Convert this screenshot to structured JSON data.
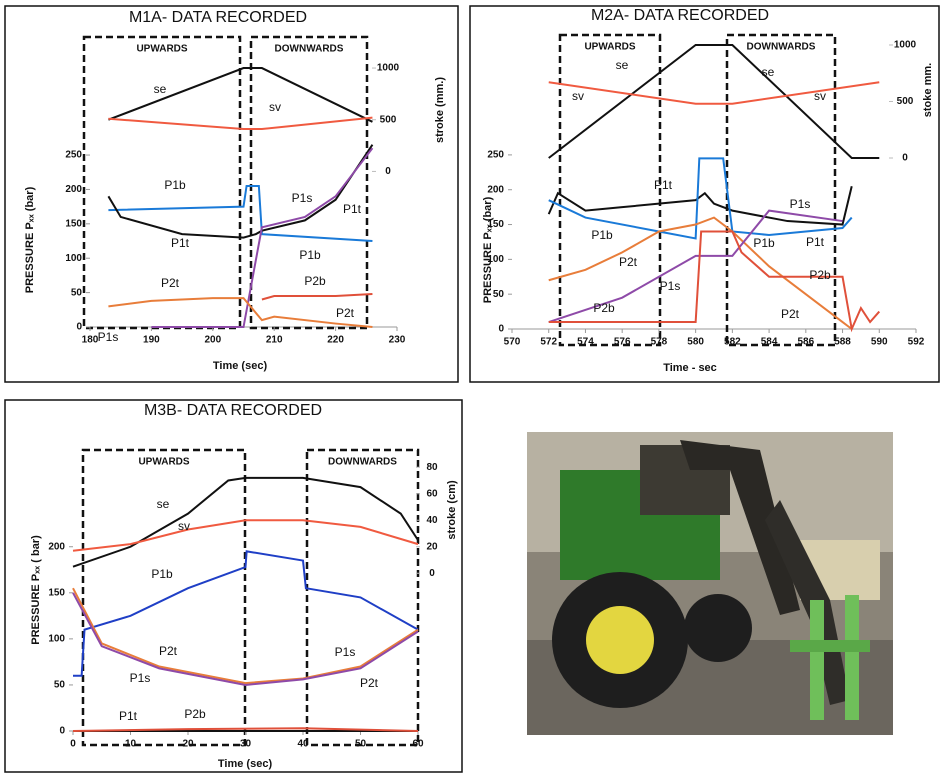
{
  "chart_data": [
    {
      "type": "line",
      "title": "M1A- DATA RECORDED",
      "annotations": [
        "UPWARDS",
        "DOWNWARDS"
      ],
      "y_label": "PRESSURE  Pₓₓ (bar)",
      "y2_label": "stroke (mm.)",
      "x_label": "Time   (sec)",
      "xlim": [
        180,
        230
      ],
      "xticks": [
        180,
        190,
        200,
        210,
        220,
        230
      ],
      "ylim": [
        0,
        410
      ],
      "yticks": [
        0,
        50,
        100,
        150,
        200,
        250
      ],
      "y2lim": [
        -1505,
        1223
      ],
      "y2ticks": [
        0,
        500,
        1000
      ],
      "series": [
        {
          "name": "se",
          "color": "#111111",
          "axis": "y2",
          "x": [
            183,
            205,
            208,
            226
          ],
          "values": [
            500,
            1000,
            1000,
            480
          ]
        },
        {
          "name": "sv",
          "color": "#f05a40",
          "axis": "y2",
          "x": [
            183,
            205,
            208,
            226
          ],
          "values": [
            510,
            410,
            410,
            520
          ]
        },
        {
          "name": "P1b",
          "color": "#1a7ad8",
          "x": [
            183,
            205,
            205.5,
            207.5,
            208,
            226
          ],
          "values": [
            170,
            175,
            205,
            205,
            135,
            125
          ]
        },
        {
          "name": "P1t",
          "color": "#111111",
          "x": [
            183,
            185,
            195,
            205,
            207,
            208,
            215,
            220,
            226
          ],
          "values": [
            190,
            160,
            135,
            130,
            135,
            140,
            155,
            185,
            265
          ]
        },
        {
          "name": "P1s",
          "color": "#8e4aa8",
          "x": [
            190,
            205,
            208,
            215,
            220,
            226
          ],
          "values": [
            0,
            0,
            145,
            160,
            190,
            260
          ]
        },
        {
          "name": "P2t",
          "color": "#e87d3a",
          "x": [
            183,
            190,
            200,
            205,
            208,
            210,
            220,
            226
          ],
          "values": [
            30,
            38,
            42,
            42,
            10,
            15,
            5,
            0
          ]
        },
        {
          "name": "P2b",
          "color": "#e0503a",
          "x": [
            208,
            210,
            220,
            226
          ],
          "values": [
            40,
            45,
            45,
            48
          ]
        }
      ]
    },
    {
      "type": "line",
      "title": "M2A- DATA RECORDED",
      "annotations": [
        "UPWARDS",
        "DOWNWARDS"
      ],
      "y_label": "PRESSURE  Pₓₓ (bar)",
      "y2_label": "stoke mm.",
      "x_label": "Time - sec",
      "xlim": [
        570,
        592
      ],
      "xticks": [
        570,
        572,
        574,
        576,
        578,
        580,
        582,
        584,
        586,
        588,
        590,
        592
      ],
      "ylim": [
        0,
        415
      ],
      "yticks": [
        0,
        50,
        100,
        150,
        200,
        250
      ],
      "y2lim": [
        -1513,
        1044
      ],
      "y2ticks": [
        0,
        500,
        1000
      ],
      "series": [
        {
          "name": "se",
          "color": "#111111",
          "axis": "y2",
          "x": [
            572,
            580,
            582,
            588.5,
            590
          ],
          "values": [
            0,
            1000,
            1000,
            0,
            0
          ]
        },
        {
          "name": "sv",
          "color": "#f05a40",
          "axis": "y2",
          "x": [
            572,
            580,
            582,
            590
          ],
          "values": [
            670,
            480,
            480,
            670
          ]
        },
        {
          "name": "P1t",
          "color": "#111111",
          "x": [
            572,
            572.5,
            574,
            576,
            580,
            580.5,
            581,
            582,
            585,
            588,
            588.5
          ],
          "values": [
            165,
            195,
            170,
            175,
            185,
            195,
            180,
            170,
            155,
            150,
            205
          ]
        },
        {
          "name": "P1b",
          "color": "#1a7ad8",
          "x": [
            572,
            574,
            578,
            580,
            580.2,
            581.5,
            582,
            584,
            588,
            588.5
          ],
          "values": [
            185,
            160,
            140,
            130,
            245,
            245,
            140,
            135,
            145,
            160
          ]
        },
        {
          "name": "P2t",
          "color": "#e87d3a",
          "x": [
            572,
            574,
            576,
            578,
            580,
            581,
            582,
            584,
            588,
            588.5
          ],
          "values": [
            70,
            85,
            110,
            140,
            150,
            160,
            140,
            90,
            10,
            0
          ]
        },
        {
          "name": "P1s",
          "color": "#8e4aa8",
          "x": [
            572,
            576,
            580,
            582,
            584,
            588
          ],
          "values": [
            10,
            45,
            105,
            105,
            170,
            155
          ]
        },
        {
          "name": "P2b",
          "color": "#e0503a",
          "x": [
            572,
            580,
            580.3,
            582,
            582.5,
            584,
            588,
            588.5,
            589,
            589.5,
            590
          ],
          "values": [
            10,
            10,
            140,
            140,
            110,
            75,
            75,
            0,
            30,
            10,
            25
          ]
        }
      ]
    },
    {
      "type": "line",
      "title": "M3B- DATA RECORDED",
      "annotations": [
        "UPWARDS",
        "DOWNWARDS"
      ],
      "y_label": "PRESSURE Pₓₓ ( bar)",
      "y2_label": "stroke (cm)",
      "x_label": "Time (sec)",
      "xlim": [
        0,
        60
      ],
      "xticks": [
        0,
        10,
        20,
        30,
        40,
        50,
        60
      ],
      "ylim": [
        0,
        305
      ],
      "yticks": [
        0,
        50,
        100,
        150,
        200
      ],
      "y2lim": [
        -119,
        93
      ],
      "y2ticks": [
        0,
        20,
        40,
        60,
        80
      ],
      "series": [
        {
          "name": "se",
          "color": "#111111",
          "axis": "y2",
          "x": [
            0,
            10,
            20,
            27,
            30,
            40,
            50,
            57,
            60
          ],
          "values": [
            5,
            20,
            45,
            70,
            72,
            72,
            65,
            45,
            25
          ]
        },
        {
          "name": "sv",
          "color": "#f05a40",
          "axis": "y2",
          "x": [
            0,
            10,
            20,
            30,
            40,
            50,
            60
          ],
          "values": [
            17,
            22,
            33,
            40,
            40,
            35,
            22
          ]
        },
        {
          "name": "P1b",
          "color": "#1f3fc6",
          "x": [
            0,
            1.5,
            2,
            10,
            20,
            30,
            30.2,
            40,
            40.5,
            50,
            60
          ],
          "values": [
            60,
            60,
            110,
            125,
            155,
            178,
            195,
            185,
            155,
            145,
            110
          ]
        },
        {
          "name": "P2t",
          "color": "#e87d3a",
          "x": [
            0,
            5,
            15,
            30,
            40,
            50,
            60
          ],
          "values": [
            155,
            95,
            70,
            52,
            57,
            70,
            110
          ]
        },
        {
          "name": "P1s",
          "color": "#8e4aa8",
          "x": [
            0,
            5,
            15,
            30,
            40,
            50,
            60
          ],
          "values": [
            150,
            92,
            68,
            50,
            56,
            68,
            108
          ]
        },
        {
          "name": "P1t",
          "color": "#111111",
          "x": [
            0,
            60
          ],
          "values": [
            0,
            0
          ]
        },
        {
          "name": "P2b",
          "color": "#e0503a",
          "x": [
            0,
            20,
            40,
            60
          ],
          "values": [
            0,
            2,
            3,
            0
          ]
        }
      ]
    }
  ]
}
